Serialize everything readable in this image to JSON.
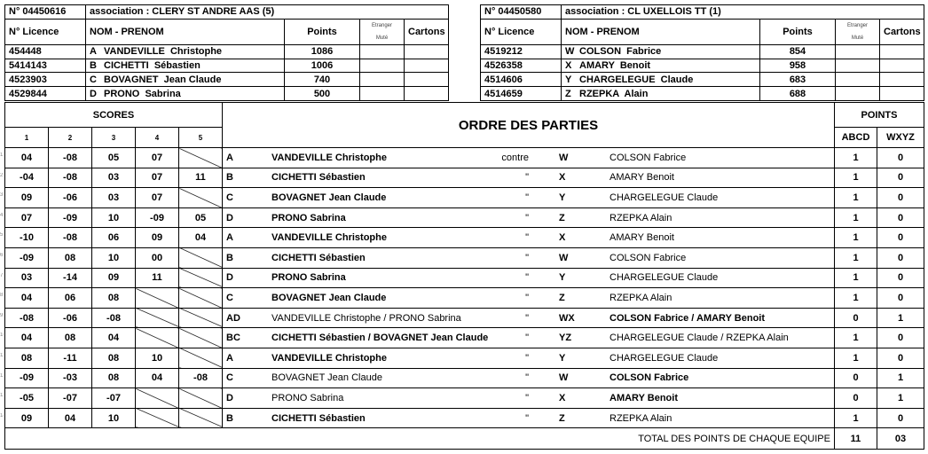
{
  "team_left": {
    "number": "N° 04450616",
    "association": "association : CLERY ST ANDRE AAS  (5)",
    "headers": {
      "licence": "N° Licence",
      "name": "NOM - PRENOM",
      "points": "Points",
      "etranger": "Etranger",
      "mute": "Muté",
      "cartons": "Cartons"
    },
    "players": [
      {
        "licence": "454448",
        "letter": "A",
        "name": "VANDEVILLE  Christophe",
        "points": "1086"
      },
      {
        "licence": "5414143",
        "letter": "B",
        "name": "CICHETTI  Sébastien",
        "points": "1006"
      },
      {
        "licence": "4523903",
        "letter": "C",
        "name": "BOVAGNET  Jean Claude",
        "points": "740"
      },
      {
        "licence": "4529844",
        "letter": "D",
        "name": "PRONO  Sabrina",
        "points": "500"
      }
    ]
  },
  "team_right": {
    "number": "N° 04450580",
    "association": "association : CL UXELLOIS TT  (1)",
    "headers": {
      "licence": "N° Licence",
      "name": "NOM - PRENOM",
      "points": "Points",
      "etranger": "Etranger",
      "mute": "Muté",
      "cartons": "Cartons"
    },
    "players": [
      {
        "licence": "4519212",
        "letter": "W",
        "name": "COLSON  Fabrice",
        "points": "854"
      },
      {
        "licence": "4526358",
        "letter": "X",
        "name": "AMARY  Benoit",
        "points": "958"
      },
      {
        "licence": "4514606",
        "letter": "Y",
        "name": "CHARGELEGUE  Claude",
        "points": "683"
      },
      {
        "licence": "4514659",
        "letter": "Z",
        "name": "RZEPKA  Alain",
        "points": "688"
      }
    ]
  },
  "main": {
    "scores_header": "SCORES",
    "set_headers": [
      "1",
      "2",
      "3",
      "4",
      "5"
    ],
    "ordre_header": "ORDRE DES PARTIES",
    "points_header": "POINTS",
    "abcd_header": "ABCD",
    "wxyz_header": "WXYZ",
    "total_label": "TOTAL DES POINTS DE CHAQUE EQUIPE",
    "total_abcd": "11",
    "total_wxyz": "03",
    "games": [
      {
        "no": "1",
        "sets": [
          "04",
          "-08",
          "05",
          "07",
          ""
        ],
        "l": "A",
        "ln": "VANDEVILLE Christophe",
        "lb": true,
        "vs": "contre",
        "r": "W",
        "rn": "COLSON Fabrice",
        "rb": false,
        "pa": "1",
        "pw": "0"
      },
      {
        "no": "2",
        "sets": [
          "-04",
          "-08",
          "03",
          "07",
          "11"
        ],
        "l": "B",
        "ln": "CICHETTI Sébastien",
        "lb": true,
        "vs": "\"",
        "r": "X",
        "rn": "AMARY Benoit",
        "rb": false,
        "pa": "1",
        "pw": "0"
      },
      {
        "no": "3",
        "sets": [
          "09",
          "-06",
          "03",
          "07",
          ""
        ],
        "l": "C",
        "ln": "BOVAGNET Jean Claude",
        "lb": true,
        "vs": "\"",
        "r": "Y",
        "rn": "CHARGELEGUE Claude",
        "rb": false,
        "pa": "1",
        "pw": "0"
      },
      {
        "no": "4",
        "sets": [
          "07",
          "-09",
          "10",
          "-09",
          "05"
        ],
        "l": "D",
        "ln": "PRONO Sabrina",
        "lb": true,
        "vs": "\"",
        "r": "Z",
        "rn": "RZEPKA Alain",
        "rb": false,
        "pa": "1",
        "pw": "0"
      },
      {
        "no": "5",
        "sets": [
          "-10",
          "-08",
          "06",
          "09",
          "04"
        ],
        "l": "A",
        "ln": "VANDEVILLE Christophe",
        "lb": true,
        "vs": "\"",
        "r": "X",
        "rn": "AMARY Benoit",
        "rb": false,
        "pa": "1",
        "pw": "0"
      },
      {
        "no": "6",
        "sets": [
          "-09",
          "08",
          "10",
          "00",
          ""
        ],
        "l": "B",
        "ln": "CICHETTI Sébastien",
        "lb": true,
        "vs": "\"",
        "r": "W",
        "rn": "COLSON Fabrice",
        "rb": false,
        "pa": "1",
        "pw": "0"
      },
      {
        "no": "7",
        "sets": [
          "03",
          "-14",
          "09",
          "11",
          ""
        ],
        "l": "D",
        "ln": "PRONO Sabrina",
        "lb": true,
        "vs": "\"",
        "r": "Y",
        "rn": "CHARGELEGUE Claude",
        "rb": false,
        "pa": "1",
        "pw": "0"
      },
      {
        "no": "8",
        "sets": [
          "04",
          "06",
          "08",
          "",
          ""
        ],
        "l": "C",
        "ln": "BOVAGNET Jean Claude",
        "lb": true,
        "vs": "\"",
        "r": "Z",
        "rn": "RZEPKA Alain",
        "rb": false,
        "pa": "1",
        "pw": "0"
      },
      {
        "no": "9",
        "sets": [
          "-08",
          "-06",
          "-08",
          "",
          ""
        ],
        "l": "AD",
        "ln": "VANDEVILLE Christophe / PRONO Sabrina",
        "lb": false,
        "vs": "\"",
        "r": "WX",
        "rn": "COLSON Fabrice / AMARY Benoit",
        "rb": true,
        "pa": "0",
        "pw": "1"
      },
      {
        "no": "10",
        "sets": [
          "04",
          "08",
          "04",
          "",
          ""
        ],
        "l": "BC",
        "ln": "CICHETTI Sébastien / BOVAGNET Jean Claude",
        "lb": true,
        "vs": "\"",
        "r": "YZ",
        "rn": "CHARGELEGUE Claude / RZEPKA Alain",
        "rb": false,
        "pa": "1",
        "pw": "0"
      },
      {
        "no": "11",
        "sets": [
          "08",
          "-11",
          "08",
          "10",
          ""
        ],
        "l": "A",
        "ln": "VANDEVILLE Christophe",
        "lb": true,
        "vs": "\"",
        "r": "Y",
        "rn": "CHARGELEGUE Claude",
        "rb": false,
        "pa": "1",
        "pw": "0"
      },
      {
        "no": "12",
        "sets": [
          "-09",
          "-03",
          "08",
          "04",
          "-08"
        ],
        "l": "C",
        "ln": "BOVAGNET Jean Claude",
        "lb": false,
        "vs": "\"",
        "r": "W",
        "rn": "COLSON Fabrice",
        "rb": true,
        "pa": "0",
        "pw": "1"
      },
      {
        "no": "13",
        "sets": [
          "-05",
          "-07",
          "-07",
          "",
          ""
        ],
        "l": "D",
        "ln": "PRONO Sabrina",
        "lb": false,
        "vs": "\"",
        "r": "X",
        "rn": "AMARY Benoit",
        "rb": true,
        "pa": "0",
        "pw": "1"
      },
      {
        "no": "14",
        "sets": [
          "09",
          "04",
          "10",
          "",
          ""
        ],
        "l": "B",
        "ln": "CICHETTI Sébastien",
        "lb": true,
        "vs": "\"",
        "r": "Z",
        "rn": "RZEPKA Alain",
        "rb": false,
        "pa": "1",
        "pw": "0"
      }
    ]
  }
}
